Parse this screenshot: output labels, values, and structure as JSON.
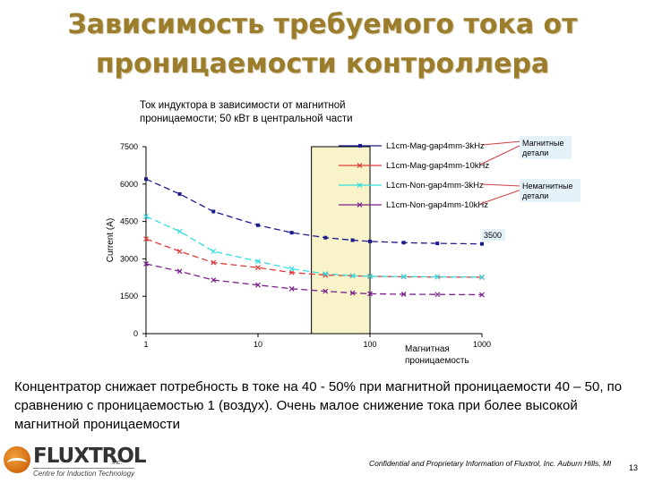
{
  "slide": {
    "title_line1": "Зависимость требуемого тока от",
    "title_line2": "проницаемости контроллера",
    "body_text": "Концентратор снижает потребность в токе  на 40 - 50% при магнитной проницаемости 40 – 50, по сравнению с проницаемостью 1 (воздух). Очень малое снижение тока при более высокой магнитной проницаемости",
    "footer_note": "Confidential and Proprietary Information of Fluxtrol, Inc. Auburn Hills, MI",
    "page_number": "13",
    "logo_name": "FLUXTROL",
    "logo_tm": "Inc.",
    "logo_tagline": "Centre for Induction Technology"
  },
  "chart_data": {
    "type": "line",
    "title_line1": "Ток индуктора в зависимости от магнитной",
    "title_line2": "проницаемости; 50 кВт в центральной части",
    "xlabel": "Магнитная проницаемость",
    "ylabel": "Current (A)",
    "x_scale": "log",
    "xlim": [
      1,
      1000
    ],
    "ylim": [
      0,
      7500
    ],
    "x_ticks": [
      1,
      10,
      100,
      1000
    ],
    "x_tick_labels": [
      "1",
      "10",
      "100",
      "1000"
    ],
    "y_ticks": [
      0,
      1500,
      3000,
      4500,
      6000,
      7500
    ],
    "y_tick_labels": [
      "0",
      "1500",
      "3000",
      "4500",
      "6000",
      "7500"
    ],
    "grid": false,
    "legend_position": "top-right",
    "highlight_band": {
      "x_from": 30,
      "x_to": 100,
      "color": "#f8f3c8"
    },
    "series": [
      {
        "name": "L1cm-Mag-gap4mm-3kHz",
        "color": "#1a1a8c",
        "marker": "square",
        "x": [
          1,
          2,
          4,
          10,
          20,
          40,
          70,
          100,
          200,
          400,
          1000
        ],
        "y": [
          6200,
          5600,
          4900,
          4350,
          4050,
          3850,
          3750,
          3700,
          3650,
          3620,
          3600
        ]
      },
      {
        "name": "L1cm-Mag-gap4mm-10kHz",
        "color": "#e03a3a",
        "marker": "x",
        "x": [
          1,
          2,
          4,
          10,
          20,
          40,
          70,
          100,
          200,
          400,
          1000
        ],
        "y": [
          3800,
          3300,
          2850,
          2650,
          2450,
          2350,
          2320,
          2300,
          2280,
          2270,
          2260
        ]
      },
      {
        "name": "L1cm-Non-gap4mm-3kHz",
        "color": "#33dde0",
        "marker": "x",
        "x": [
          1,
          2,
          4,
          10,
          20,
          40,
          70,
          100,
          200,
          400,
          1000
        ],
        "y": [
          4700,
          4100,
          3300,
          2900,
          2600,
          2400,
          2320,
          2300,
          2290,
          2280,
          2270
        ]
      },
      {
        "name": "L1cm-Non-gap4mm-10kHz",
        "color": "#7b1f8c",
        "marker": "x",
        "x": [
          1,
          2,
          4,
          10,
          20,
          40,
          70,
          100,
          200,
          400,
          1000
        ],
        "y": [
          2800,
          2500,
          2150,
          1950,
          1800,
          1700,
          1630,
          1600,
          1580,
          1570,
          1560
        ]
      }
    ],
    "annotations": [
      {
        "text": "Магнитные детали",
        "box_color": "#e6f2fa",
        "arrow_color": "#cc4444",
        "points_to_series": [
          0,
          1
        ]
      },
      {
        "text": "Немагнитные детали",
        "box_color": "#e6f2fa",
        "arrow_color": "#cc4444",
        "points_to_series": [
          2,
          3
        ]
      },
      {
        "text": "3500",
        "box_color": "#e6f2fa"
      }
    ]
  }
}
